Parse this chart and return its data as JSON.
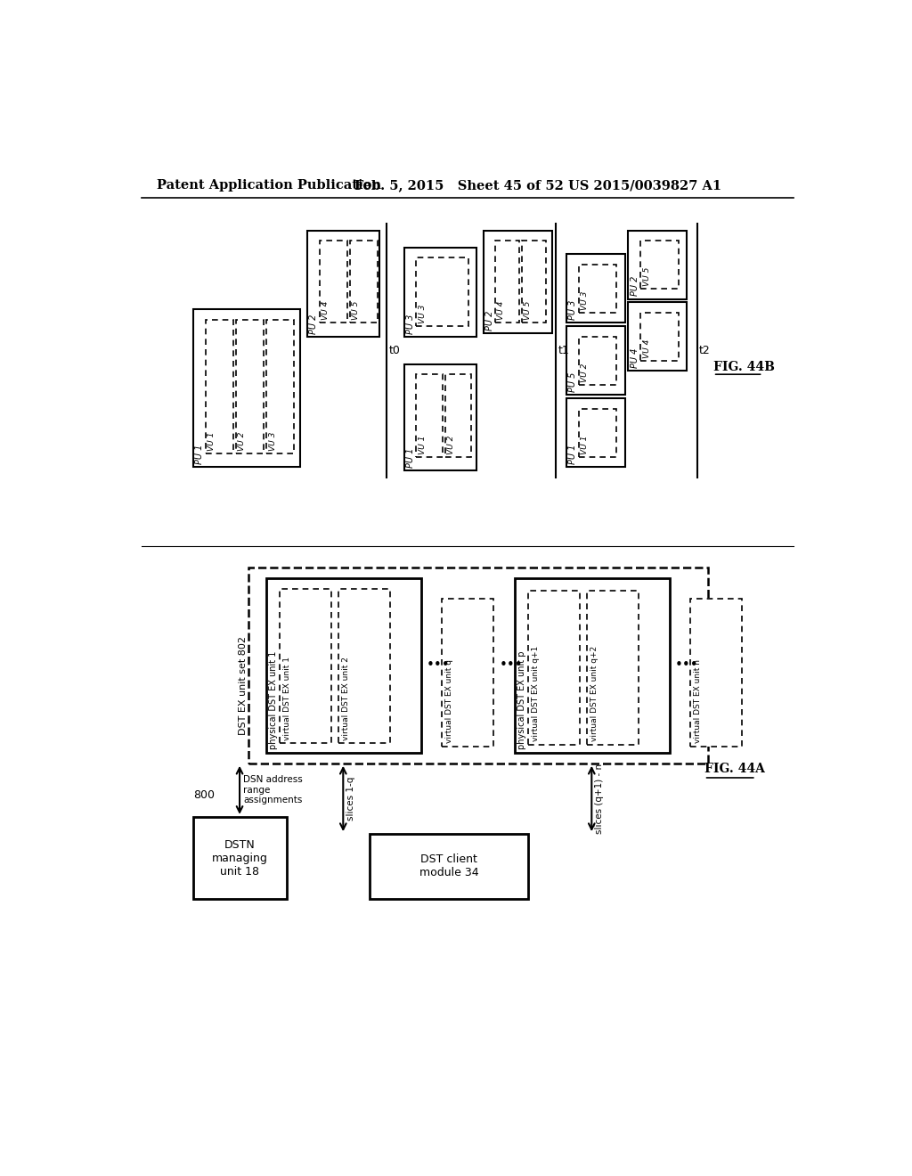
{
  "header_left": "Patent Application Publication",
  "header_mid": "Feb. 5, 2015   Sheet 45 of 52",
  "header_right": "US 2015/0039827 A1",
  "fig44a_label": "FIG. 44A",
  "fig44b_label": "FIG. 44B",
  "bg_color": "#ffffff"
}
